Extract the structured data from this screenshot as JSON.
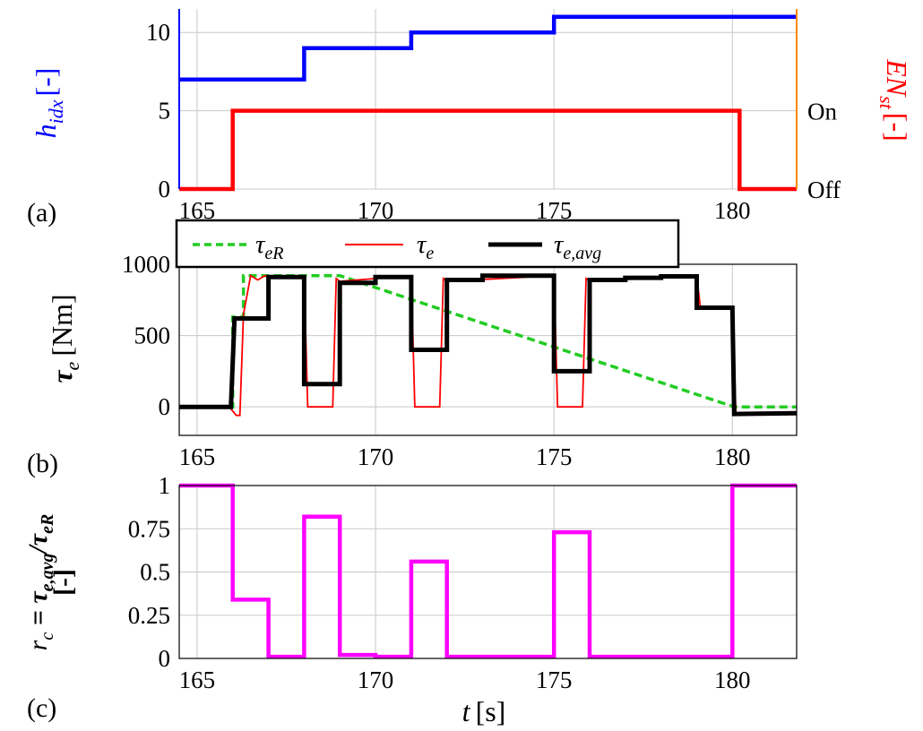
{
  "chart_data": [
    {
      "panel": "(a)",
      "type": "line",
      "xlim": [
        164.5,
        181.8
      ],
      "x_ticks": [
        "165",
        "170",
        "175",
        "180"
      ],
      "y_left": {
        "label": "h",
        "label_sub": "idx",
        "label_suffix": "[-]",
        "ylim": [
          0,
          11.5
        ],
        "ticks": [
          "0",
          "5",
          "10"
        ],
        "color": "#0000ff"
      },
      "y_right": {
        "label": "EN",
        "label_sub": "st",
        "label_suffix": "[-]",
        "tick_labels": [
          "Off",
          "On"
        ],
        "color": "#ff0000"
      },
      "series": [
        {
          "axis": "left",
          "color": "#0000ff",
          "x": [
            164.5,
            168,
            168,
            171,
            171,
            175,
            175,
            181.8
          ],
          "y": [
            7,
            7,
            9,
            9,
            10,
            10,
            11,
            11
          ]
        },
        {
          "axis": "left",
          "color": "#ff0000",
          "x": [
            164.5,
            166,
            166,
            180.2,
            180.2,
            181.8
          ],
          "y": [
            0,
            0,
            5,
            5,
            0,
            0
          ]
        }
      ],
      "grid": true
    },
    {
      "panel": "(b)",
      "type": "line",
      "xlim": [
        164.5,
        181.8
      ],
      "x_ticks": [
        "165",
        "170",
        "175",
        "180"
      ],
      "ylabel": "τ",
      "ylabel_sub": "e",
      "ylabel_suffix": "[Nm]",
      "ylim": [
        -200,
        1000
      ],
      "y_ticks": [
        "0",
        "500",
        "1000"
      ],
      "grid": true,
      "legend": {
        "placement": "top",
        "entries": [
          {
            "name": "τ",
            "sub": "eR",
            "color": "#22cc22",
            "style": "dashed"
          },
          {
            "name": "τ",
            "sub": "e",
            "color": "#ff0000",
            "style": "solid"
          },
          {
            "name": "τ",
            "sub": "e,avg",
            "color": "#000000",
            "style": "solid-thick"
          }
        ]
      },
      "series": [
        {
          "name": "τeR",
          "color": "#22cc22",
          "style": "dashed",
          "x": [
            164.5,
            166,
            166,
            166.3,
            166.3,
            169,
            169,
            180.05,
            180.05,
            181.8
          ],
          "y": [
            0,
            0,
            630,
            630,
            920,
            920,
            920,
            0,
            0,
            0
          ]
        },
        {
          "name": "τe",
          "color": "#ff0000",
          "style": "solid",
          "x": [
            164.5,
            165.9,
            166.1,
            166.2,
            166.3,
            166.5,
            166.7,
            166.9,
            167,
            168,
            168.1,
            168.3,
            168.8,
            168.9,
            169,
            171,
            171.1,
            171.3,
            171.8,
            171.9,
            172,
            175,
            175.1,
            175.3,
            175.8,
            175.9,
            176,
            179,
            179.1,
            180,
            180.1,
            180.4,
            181,
            181.8
          ],
          "y": [
            0,
            0,
            -60,
            -60,
            650,
            920,
            890,
            920,
            910,
            910,
            0,
            0,
            0,
            900,
            880,
            920,
            0,
            0,
            0,
            900,
            880,
            920,
            0,
            0,
            0,
            900,
            880,
            920,
            700,
            690,
            -60,
            -50,
            -40,
            -40
          ]
        },
        {
          "name": "τe,avg",
          "color": "#000000",
          "style": "solid-thick",
          "x": [
            164.5,
            165.95,
            166.05,
            167,
            167,
            168,
            168,
            169,
            169,
            170,
            170,
            171,
            171,
            172,
            172,
            173,
            173,
            175,
            175,
            176,
            176,
            177,
            177,
            178,
            178,
            179,
            179,
            180,
            180.05,
            181.8
          ],
          "y": [
            0,
            0,
            620,
            620,
            910,
            910,
            160,
            160,
            870,
            870,
            910,
            910,
            400,
            400,
            890,
            890,
            920,
            920,
            250,
            250,
            890,
            890,
            905,
            905,
            915,
            915,
            695,
            695,
            -50,
            -45
          ]
        }
      ]
    },
    {
      "panel": "(c)",
      "type": "line",
      "xlim": [
        164.5,
        181.8
      ],
      "x_ticks": [
        "165",
        "170",
        "175",
        "180"
      ],
      "xlabel": "t",
      "xlabel_suffix": "[s]",
      "ylabel": "r",
      "ylabel_sub": "c",
      "ylabel_rest": " = τ",
      "ylabel_rest_sub": "e,avg",
      "ylabel_rest2": "/τ",
      "ylabel_rest2_sub": "eR",
      "ylabel_line2": "[-]",
      "ylim": [
        0,
        1
      ],
      "y_ticks": [
        "0",
        "0.25",
        "0.5",
        "0.75",
        "1"
      ],
      "grid": true,
      "series": [
        {
          "color": "#ff00ff",
          "x": [
            164.5,
            166,
            166,
            167,
            167,
            168,
            168,
            169,
            169,
            170,
            170,
            171,
            171,
            172,
            172,
            175,
            175,
            176,
            176,
            180,
            180,
            181.8
          ],
          "y": [
            1,
            1,
            0.34,
            0.34,
            0.01,
            0.01,
            0.82,
            0.82,
            0.02,
            0.02,
            0.01,
            0.01,
            0.56,
            0.56,
            0.01,
            0.01,
            0.73,
            0.73,
            0.01,
            0.01,
            1,
            1
          ]
        }
      ]
    }
  ]
}
